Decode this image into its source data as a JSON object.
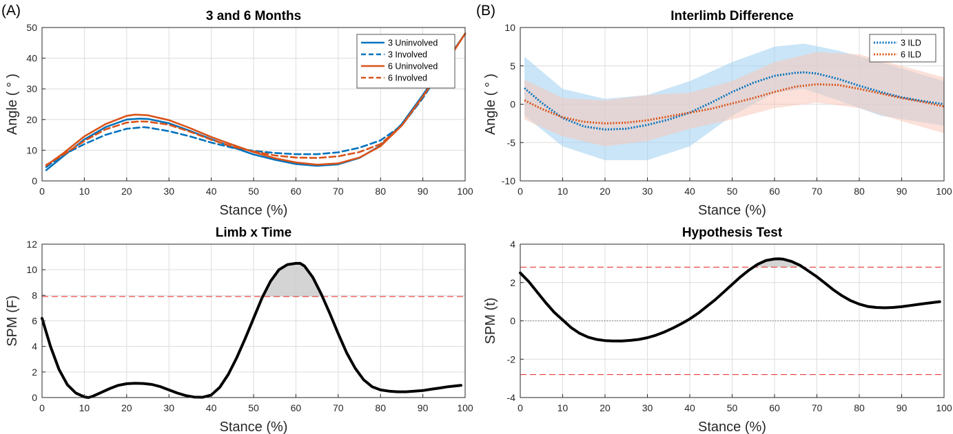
{
  "panel_labels": [
    "(A)",
    "(B)"
  ],
  "colors": {
    "blue": "#0072BD",
    "orange": "#D95319",
    "red_threshold": "#E8393A",
    "black": "#000000",
    "band_blue": "#9fd0f0",
    "band_orange": "#f7c9b9"
  },
  "chart_data": [
    {
      "id": "p1",
      "type": "line",
      "title": "3 and 6 Months",
      "xlabel": "Stance (%)",
      "ylabel": "Angle ( ° )",
      "xlim": [
        0,
        100
      ],
      "ylim": [
        0,
        50
      ],
      "xticks": [
        0,
        10,
        20,
        30,
        40,
        50,
        60,
        70,
        80,
        90,
        100
      ],
      "yticks": [
        0,
        10,
        20,
        30,
        40,
        50
      ],
      "grid": true,
      "legend_position": "top-right",
      "series": [
        {
          "name": "3 Uninvolved",
          "color": "#0072BD",
          "dash": "solid",
          "x": [
            1,
            5,
            10,
            15,
            20,
            23,
            25,
            30,
            35,
            40,
            45,
            50,
            55,
            60,
            65,
            70,
            75,
            80,
            85,
            90,
            95,
            100
          ],
          "y": [
            3.5,
            8,
            13.5,
            17.5,
            20,
            20.3,
            20.2,
            18.8,
            16.3,
            13.6,
            11,
            8.6,
            6.9,
            5.5,
            4.9,
            5.4,
            7.5,
            11.5,
            18.5,
            28,
            38,
            48
          ]
        },
        {
          "name": "3 Involved",
          "color": "#0072BD",
          "dash": "dashed",
          "x": [
            1,
            5,
            10,
            15,
            20,
            24,
            25,
            30,
            35,
            40,
            45,
            50,
            55,
            60,
            65,
            70,
            75,
            80,
            85,
            90,
            95,
            100
          ],
          "y": [
            4.5,
            8.5,
            12,
            15,
            17,
            17.5,
            17.4,
            16.2,
            14.5,
            12.5,
            10.8,
            9.8,
            9.1,
            8.7,
            8.7,
            9.3,
            10.8,
            13.2,
            18,
            27,
            37.5,
            48
          ]
        },
        {
          "name": "6 Uninvolved",
          "color": "#D95319",
          "dash": "solid",
          "x": [
            1,
            5,
            10,
            15,
            20,
            22,
            25,
            30,
            35,
            40,
            45,
            50,
            55,
            60,
            65,
            70,
            75,
            80,
            85,
            90,
            95,
            100
          ],
          "y": [
            5,
            9,
            14.5,
            18.5,
            21.2,
            21.6,
            21.4,
            19.8,
            17.2,
            14.3,
            11.8,
            9.4,
            7.4,
            6,
            5.3,
            5.7,
            7.6,
            11.3,
            18,
            27.5,
            37.5,
            48
          ]
        },
        {
          "name": "6 Involved",
          "color": "#D95319",
          "dash": "dashed",
          "x": [
            1,
            5,
            10,
            15,
            20,
            23,
            25,
            30,
            35,
            40,
            45,
            50,
            55,
            60,
            65,
            70,
            75,
            80,
            85,
            90,
            95,
            100
          ],
          "y": [
            5.2,
            8.5,
            13,
            16.8,
            19,
            19.4,
            19.3,
            18.3,
            16,
            13.4,
            11.2,
            9.6,
            8.3,
            7.6,
            7.5,
            8,
            9.4,
            12,
            18,
            27.5,
            37.5,
            48
          ]
        }
      ]
    },
    {
      "id": "p2",
      "type": "line",
      "title": "Interlimb Difference",
      "xlabel": "Stance (%)",
      "ylabel": "Angle ( ° )",
      "xlim": [
        0,
        100
      ],
      "ylim": [
        -10,
        10
      ],
      "xticks": [
        0,
        10,
        20,
        30,
        40,
        50,
        60,
        70,
        80,
        90,
        100
      ],
      "yticks": [
        -10,
        -5,
        0,
        5,
        10
      ],
      "grid": true,
      "legend_position": "top-right",
      "bands": [
        {
          "color": "#9fd0f0",
          "opacity": 0.55,
          "x": [
            1,
            10,
            20,
            30,
            40,
            50,
            60,
            67,
            75,
            85,
            100
          ],
          "lower": [
            -1.5,
            -5.5,
            -7.3,
            -7.3,
            -5.5,
            -1.5,
            1.5,
            2,
            0.5,
            -1.5,
            -2.8
          ],
          "upper": [
            6.2,
            2,
            0.7,
            1.2,
            3,
            5.5,
            7.5,
            7.9,
            7,
            5.5,
            3
          ]
        },
        {
          "color": "#f7c9b9",
          "opacity": 0.55,
          "x": [
            1,
            10,
            20,
            30,
            40,
            50,
            60,
            70,
            80,
            90,
            100
          ],
          "lower": [
            -2,
            -4.2,
            -5.5,
            -4.8,
            -3.2,
            -2,
            -0.5,
            0.2,
            -0.5,
            -2.2,
            -3.8
          ],
          "upper": [
            3.2,
            0.8,
            0.5,
            1.2,
            1.5,
            3,
            5.5,
            6.8,
            6.5,
            5,
            3.5
          ]
        }
      ],
      "series": [
        {
          "name": "3 ILD",
          "color": "#0072BD",
          "dash": "dotted",
          "x": [
            1,
            5,
            10,
            15,
            20,
            25,
            30,
            35,
            40,
            45,
            50,
            55,
            60,
            65,
            67,
            70,
            75,
            80,
            85,
            90,
            95,
            100
          ],
          "y": [
            2.1,
            0.2,
            -1.8,
            -2.9,
            -3.3,
            -3.2,
            -2.7,
            -2,
            -1.1,
            0.2,
            1.6,
            2.8,
            3.7,
            4.1,
            4.15,
            4,
            3.3,
            2.4,
            1.6,
            0.9,
            0.4,
            0
          ]
        },
        {
          "name": "6 ILD",
          "color": "#D95319",
          "dash": "dotted",
          "x": [
            1,
            5,
            10,
            15,
            20,
            25,
            30,
            35,
            40,
            45,
            50,
            55,
            60,
            65,
            70,
            75,
            80,
            85,
            90,
            95,
            100
          ],
          "y": [
            0.5,
            -0.6,
            -1.7,
            -2.3,
            -2.5,
            -2.4,
            -2.1,
            -1.6,
            -1.1,
            -0.6,
            0.1,
            0.8,
            1.6,
            2.3,
            2.6,
            2.5,
            2,
            1.4,
            0.8,
            0.3,
            -0.3
          ]
        }
      ]
    },
    {
      "id": "p3",
      "type": "line",
      "title": "Limb x Time",
      "xlabel": "Stance (%)",
      "ylabel": "SPM (F)",
      "xlim": [
        0,
        100
      ],
      "ylim": [
        0,
        12
      ],
      "xticks": [
        0,
        10,
        20,
        30,
        40,
        50,
        60,
        70,
        80,
        90,
        100
      ],
      "yticks": [
        0,
        2,
        4,
        6,
        8,
        10,
        12
      ],
      "grid": true,
      "threshold_upper": 7.9,
      "zero_line": 0,
      "shade_above_threshold": true,
      "series": [
        {
          "name": "",
          "color": "#000000",
          "dash": "solid",
          "x": [
            0,
            2,
            4,
            6,
            8,
            10,
            11,
            12,
            14,
            16,
            18,
            20,
            22,
            24,
            26,
            28,
            30,
            32,
            34,
            36,
            38,
            40,
            42,
            44,
            46,
            48,
            50,
            52,
            54,
            56,
            58,
            60,
            61,
            62,
            64,
            66,
            68,
            70,
            72,
            74,
            76,
            78,
            80,
            82,
            84,
            86,
            88,
            90,
            92,
            94,
            96,
            99
          ],
          "y": [
            6.2,
            4,
            2.2,
            1,
            0.35,
            0.05,
            0,
            0.1,
            0.4,
            0.7,
            0.95,
            1.08,
            1.12,
            1.1,
            1.02,
            0.85,
            0.6,
            0.35,
            0.15,
            0.03,
            0.02,
            0.2,
            0.8,
            1.8,
            3.1,
            4.6,
            6.2,
            7.8,
            9.1,
            10,
            10.4,
            10.5,
            10.5,
            10.3,
            9.4,
            8.1,
            6.6,
            5,
            3.5,
            2.3,
            1.4,
            0.85,
            0.6,
            0.5,
            0.45,
            0.45,
            0.5,
            0.55,
            0.65,
            0.75,
            0.85,
            0.95
          ]
        }
      ]
    },
    {
      "id": "p4",
      "type": "line",
      "title": "Hypothesis Test",
      "xlabel": "Stance (%)",
      "ylabel": "SPM (t)",
      "xlim": [
        0,
        100
      ],
      "ylim": [
        -4,
        4
      ],
      "xticks": [
        0,
        10,
        20,
        30,
        40,
        50,
        60,
        70,
        80,
        90,
        100
      ],
      "yticks": [
        -4,
        -2,
        0,
        2,
        4
      ],
      "grid": true,
      "threshold_upper": 2.8,
      "threshold_lower": -2.8,
      "zero_line": 0,
      "shade_above_threshold": true,
      "series": [
        {
          "name": "",
          "color": "#000000",
          "dash": "solid",
          "x": [
            0,
            2,
            4,
            6,
            8,
            10,
            12,
            14,
            16,
            18,
            20,
            22,
            24,
            26,
            28,
            30,
            32,
            34,
            36,
            38,
            40,
            42,
            44,
            46,
            48,
            50,
            52,
            54,
            56,
            58,
            60,
            61,
            62,
            64,
            66,
            68,
            70,
            72,
            74,
            76,
            78,
            80,
            82,
            84,
            86,
            88,
            90,
            92,
            94,
            96,
            99
          ],
          "y": [
            2.5,
            2.05,
            1.5,
            0.95,
            0.45,
            0.05,
            -0.35,
            -0.65,
            -0.85,
            -0.97,
            -1.03,
            -1.05,
            -1.05,
            -1.02,
            -0.97,
            -0.88,
            -0.75,
            -0.58,
            -0.38,
            -0.15,
            0.1,
            0.4,
            0.75,
            1.1,
            1.5,
            1.9,
            2.3,
            2.65,
            2.95,
            3.15,
            3.23,
            3.24,
            3.22,
            3.1,
            2.9,
            2.6,
            2.3,
            1.95,
            1.6,
            1.3,
            1.05,
            0.87,
            0.75,
            0.7,
            0.68,
            0.7,
            0.74,
            0.8,
            0.86,
            0.92,
            1
          ]
        }
      ]
    }
  ]
}
